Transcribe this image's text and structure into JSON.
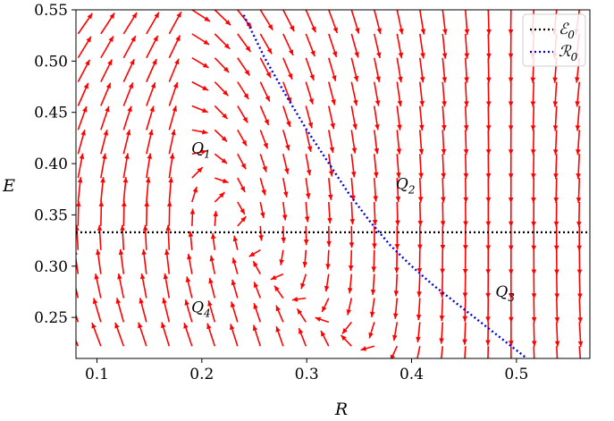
{
  "chart_data": {
    "type": "quiver",
    "xlabel": "R",
    "ylabel": "E",
    "xlim": [
      0.08,
      0.57
    ],
    "ylim": [
      0.21,
      0.55
    ],
    "x_ticks": [
      0.1,
      0.2,
      0.3,
      0.4,
      0.5
    ],
    "x_tick_labels": [
      "0.1",
      "0.2",
      "0.3",
      "0.4",
      "0.5"
    ],
    "y_ticks": [
      0.25,
      0.3,
      0.35,
      0.4,
      0.45,
      0.5,
      0.55
    ],
    "y_tick_labels": [
      "0.25",
      "0.30",
      "0.35",
      "0.40",
      "0.45",
      "0.50",
      "0.55"
    ],
    "grid": false,
    "arrow_color": "#ff0000",
    "series": [
      {
        "name": "ℰ0",
        "kind": "hline",
        "y": 0.333,
        "color": "#000000",
        "style": "dotted"
      },
      {
        "name": "ℛ0",
        "kind": "curve",
        "color": "#0000dd",
        "style": "dotted",
        "x": [
          0.24,
          0.26,
          0.28,
          0.3,
          0.32,
          0.34,
          0.36,
          0.38,
          0.4,
          0.42,
          0.44,
          0.46,
          0.48,
          0.5,
          0.51
        ],
        "y": [
          0.545,
          0.503,
          0.467,
          0.433,
          0.402,
          0.371,
          0.344,
          0.32,
          0.3,
          0.282,
          0.266,
          0.25,
          0.234,
          0.218,
          0.21
        ]
      }
    ],
    "legend": {
      "position": "top-right",
      "entries": [
        "ℰ0",
        "ℛ0"
      ]
    },
    "regions": [
      {
        "label": "Q1",
        "x": 0.19,
        "y": 0.41
      },
      {
        "label": "Q2",
        "x": 0.385,
        "y": 0.375
      },
      {
        "label": "Q3",
        "x": 0.48,
        "y": 0.27
      },
      {
        "label": "Q4",
        "x": 0.19,
        "y": 0.255
      }
    ]
  }
}
